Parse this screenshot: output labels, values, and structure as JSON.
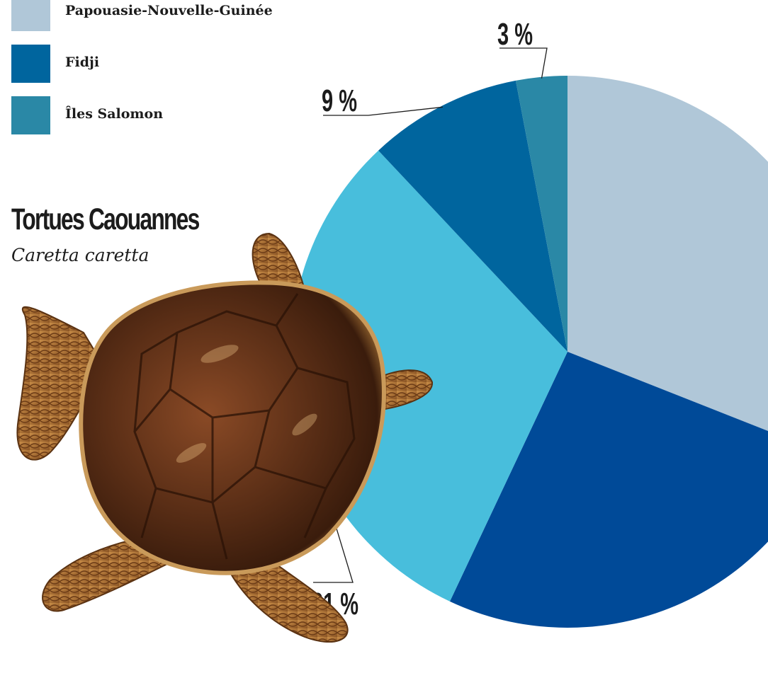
{
  "legend": [
    {
      "label": "Papouasie-Nouvelle-Guinée",
      "color": "#b0c7d8"
    },
    {
      "label": "Fidji",
      "color": "#00659e"
    },
    {
      "label": "Îles Salomon",
      "color": "#2a88a6"
    }
  ],
  "heading": {
    "title": "Tortues Caouannes",
    "subtitle": "Caretta caretta"
  },
  "chart_data": {
    "type": "pie",
    "title": "Tortues Caouannes",
    "subtitle": "Caretta caretta",
    "start": "12 o'clock",
    "direction": "clockwise",
    "slices": [
      {
        "category": "Papouasie-Nouvelle-Guinée",
        "value": 31,
        "color": "#b0c7d8"
      },
      {
        "category": "",
        "value": 26,
        "color": "#004a98"
      },
      {
        "category": "",
        "value": 31,
        "value_label": "31 %",
        "color": "#48bedc"
      },
      {
        "category": "Fidji",
        "value": 9,
        "value_label": "9 %",
        "color": "#00659e"
      },
      {
        "category": "Îles Salomon",
        "value": 3,
        "value_label": "3 %",
        "color": "#2a88a6"
      }
    ],
    "decoration": "loggerhead-turtle-illustration"
  }
}
